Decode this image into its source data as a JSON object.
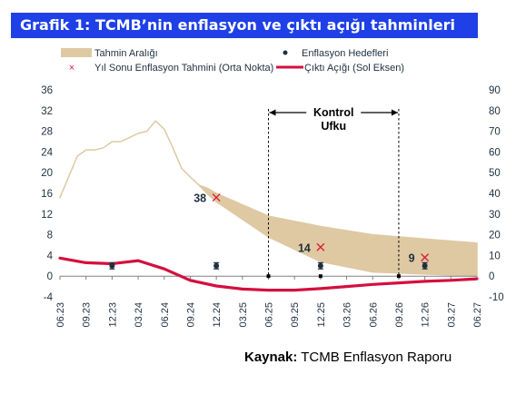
{
  "title": "Grafik 1: TCMB’nin enflasyon ve çıktı açığı tahminleri",
  "source": {
    "label": "Kaynak:",
    "text": "TCMB Enflasyon Raporu"
  },
  "chart_data": {
    "type": "line",
    "x_ticks": [
      "06.23",
      "09.23",
      "12.23",
      "03.24",
      "06.24",
      "09.24",
      "12.24",
      "03.25",
      "06.25",
      "09.25",
      "12.25",
      "03.26",
      "06.26",
      "09.26",
      "12.26",
      "03.27",
      "06.27"
    ],
    "y_left": {
      "ticks": [
        -4,
        0,
        4,
        8,
        12,
        16,
        20,
        24,
        28,
        32,
        36
      ],
      "range": [
        -4,
        36
      ]
    },
    "y_right": {
      "ticks": [
        -10,
        0,
        10,
        20,
        30,
        40,
        50,
        60,
        70,
        80,
        90
      ],
      "range": [
        -10,
        90
      ]
    },
    "grid": false,
    "legend": [
      {
        "key": "band",
        "label": "Tahmin Aralığı"
      },
      {
        "key": "target",
        "label": "Enflasyon Hedefleri"
      },
      {
        "key": "forecast",
        "label": "Yıl Sonu Enflasyon Tahmini (Orta Nokta)"
      },
      {
        "key": "gap",
        "label": "Çıktı Açığı (Sol Eksen)"
      }
    ],
    "series": [
      {
        "name": "Tahmin Aralığı",
        "axis": "right",
        "type": "area-band",
        "points": [
          [
            "06.23",
            38,
            38
          ],
          [
            "07.23",
            48,
            48
          ],
          [
            "08.23",
            58,
            58
          ],
          [
            "09.23",
            61,
            61
          ],
          [
            "10.23",
            61,
            61
          ],
          [
            "11.23",
            62,
            62
          ],
          [
            "12.23",
            65,
            65
          ],
          [
            "01.24",
            65,
            65
          ],
          [
            "02.24",
            67,
            67
          ],
          [
            "03.24",
            69,
            69
          ],
          [
            "04.24",
            70,
            70
          ],
          [
            "05.24",
            75,
            75
          ],
          [
            "06.24",
            71,
            71
          ],
          [
            "07.24",
            62,
            62
          ],
          [
            "08.24",
            52,
            52
          ],
          [
            "09.24",
            48,
            48
          ],
          [
            "10.24",
            44,
            44
          ],
          [
            "11.24",
            39.6,
            42.4
          ],
          [
            "12.24",
            36,
            40
          ],
          [
            "06.25",
            19,
            29
          ],
          [
            "12.25",
            7,
            24
          ],
          [
            "06.26",
            2,
            20
          ],
          [
            "12.26",
            1,
            18
          ],
          [
            "06.27",
            0,
            16
          ]
        ]
      },
      {
        "name": "Çıktı Açığı (Sol Eksen)",
        "axis": "left",
        "type": "line",
        "points": [
          [
            "06.23",
            3.5
          ],
          [
            "09.23",
            2.6
          ],
          [
            "12.23",
            2.4
          ],
          [
            "03.24",
            3.0
          ],
          [
            "06.24",
            1.4
          ],
          [
            "09.24",
            -0.8
          ],
          [
            "12.24",
            -1.9
          ],
          [
            "03.25",
            -2.5
          ],
          [
            "06.25",
            -2.7
          ],
          [
            "09.25",
            -2.7
          ],
          [
            "12.25",
            -2.4
          ],
          [
            "03.26",
            -2.0
          ],
          [
            "06.26",
            -1.6
          ],
          [
            "09.26",
            -1.3
          ],
          [
            "12.26",
            -1.0
          ],
          [
            "03.27",
            -0.8
          ],
          [
            "06.27",
            -0.5
          ]
        ]
      },
      {
        "name": "Enflasyon Hedefleri",
        "axis": "right",
        "type": "scatter",
        "points": [
          [
            "12.23",
            5
          ],
          [
            "12.24",
            5
          ],
          [
            "12.25",
            5
          ],
          [
            "12.26",
            5
          ]
        ],
        "error": 1.5
      },
      {
        "name": "Yıl Sonu Enflasyon Tahmini (Orta Nokta)",
        "axis": "right",
        "type": "scatter",
        "points": [
          {
            "x": "12.24",
            "y": 38,
            "label": "38"
          },
          {
            "x": "12.25",
            "y": 14,
            "label": "14"
          },
          {
            "x": "12.26",
            "y": 9,
            "label": "9"
          }
        ]
      }
    ],
    "annotations": [
      {
        "text": "Kontrol",
        "line2": "Ufku",
        "from": "06.25",
        "to": "09.26"
      }
    ],
    "colors": {
      "band": "#dfc9a3",
      "gap": "#d40f3e",
      "forecast": "#d91e3d",
      "target": "#1e2f3f",
      "axis": "#808080",
      "text": "#1e2f3f",
      "title_bg": "#1f40e6"
    }
  }
}
